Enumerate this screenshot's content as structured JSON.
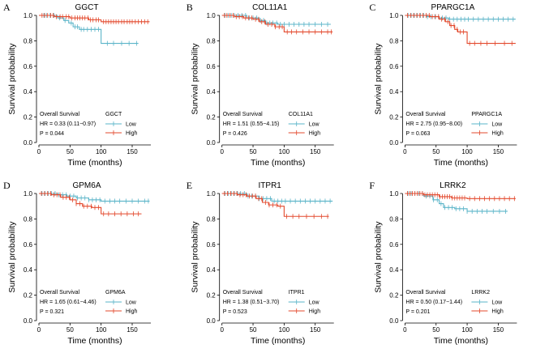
{
  "colors": {
    "low": "#5ab4c8",
    "high": "#e3492d"
  },
  "chart_data": [
    {
      "type": "line",
      "panel_label": "A",
      "title": "GGCT",
      "xlabel": "Time (months)",
      "ylabel": "Survival probability",
      "xlim": [
        0,
        180
      ],
      "ylim": [
        0,
        1
      ],
      "x_ticks": [
        "0",
        "50",
        "100",
        "150"
      ],
      "y_ticks": [
        "0.0",
        "0.2",
        "0.4",
        "0.6",
        "0.8",
        "1.0"
      ],
      "stats": {
        "label": "Overall Survival",
        "hr": "HR = 0.33 (0.11−0.97)",
        "p": "P = 0.044"
      },
      "legend": {
        "title": "GGCT",
        "entries": [
          "Low",
          "High"
        ]
      },
      "series": [
        {
          "name": "Low",
          "steps": [
            [
              0,
              1.0
            ],
            [
              30,
              0.98
            ],
            [
              40,
              0.96
            ],
            [
              48,
              0.94
            ],
            [
              55,
              0.91
            ],
            [
              65,
              0.89
            ],
            [
              100,
              0.78
            ],
            [
              150,
              0.78
            ]
          ],
          "end": 160,
          "censor": [
            8,
            12,
            18,
            24,
            33,
            42,
            52,
            58,
            62,
            68,
            72,
            78,
            84,
            90,
            96,
            110,
            120,
            133,
            145,
            157
          ]
        },
        {
          "name": "High",
          "steps": [
            [
              0,
              1.0
            ],
            [
              25,
              0.99
            ],
            [
              50,
              0.98
            ],
            [
              80,
              0.965
            ],
            [
              100,
              0.95
            ]
          ],
          "end": 178,
          "censor": [
            5,
            9,
            14,
            19,
            23,
            28,
            34,
            38,
            44,
            48,
            53,
            58,
            62,
            66,
            70,
            74,
            79,
            83,
            87,
            92,
            96,
            104,
            108,
            112,
            116,
            120,
            124,
            128,
            133,
            137,
            142,
            146,
            150,
            155,
            160,
            165,
            170,
            175
          ]
        }
      ]
    },
    {
      "type": "line",
      "panel_label": "B",
      "title": "COL11A1",
      "xlabel": "Time (months)",
      "ylabel": "Survival probability",
      "xlim": [
        0,
        180
      ],
      "ylim": [
        0,
        1
      ],
      "x_ticks": [
        "0",
        "50",
        "100",
        "150"
      ],
      "y_ticks": [
        "0.0",
        "0.2",
        "0.4",
        "0.6",
        "0.8",
        "1.0"
      ],
      "stats": {
        "label": "Overall Survival",
        "hr": "HR = 1.51 (0.55−4.15)",
        "p": "P = 0.426"
      },
      "legend": {
        "title": "COL11A1",
        "entries": [
          "Low",
          "High"
        ]
      },
      "series": [
        {
          "name": "Low",
          "steps": [
            [
              0,
              1.0
            ],
            [
              40,
              0.98
            ],
            [
              60,
              0.96
            ],
            [
              70,
              0.94
            ],
            [
              90,
              0.93
            ]
          ],
          "end": 175,
          "censor": [
            5,
            10,
            15,
            20,
            26,
            32,
            38,
            44,
            50,
            56,
            62,
            67,
            72,
            77,
            82,
            88,
            94,
            100,
            108,
            116,
            124,
            132,
            140,
            150,
            160,
            170
          ]
        },
        {
          "name": "High",
          "steps": [
            [
              0,
              1.0
            ],
            [
              20,
              0.99
            ],
            [
              35,
              0.98
            ],
            [
              50,
              0.97
            ],
            [
              60,
              0.95
            ],
            [
              70,
              0.93
            ],
            [
              85,
              0.91
            ],
            [
              100,
              0.87
            ]
          ],
          "end": 178,
          "censor": [
            4,
            8,
            13,
            18,
            23,
            28,
            33,
            38,
            43,
            48,
            54,
            59,
            64,
            69,
            74,
            80,
            86,
            92,
            97,
            105,
            112,
            120,
            130,
            140,
            150,
            160,
            170,
            176
          ]
        }
      ]
    },
    {
      "type": "line",
      "panel_label": "C",
      "title": "PPARGC1A",
      "xlabel": "Time (months)",
      "ylabel": "Survival probability",
      "xlim": [
        0,
        180
      ],
      "ylim": [
        0,
        1
      ],
      "x_ticks": [
        "0",
        "50",
        "100",
        "150"
      ],
      "y_ticks": [
        "0.0",
        "0.2",
        "0.4",
        "0.6",
        "0.8",
        "1.0"
      ],
      "stats": {
        "label": "Overall Survival",
        "hr": "HR = 2.75 (0.95−8.00)",
        "p": "P = 0.063"
      },
      "legend": {
        "title": "PPARGC1A",
        "entries": [
          "Low",
          "High"
        ]
      },
      "series": [
        {
          "name": "Low",
          "steps": [
            [
              0,
              1.0
            ],
            [
              35,
              0.99
            ],
            [
              55,
              0.98
            ],
            [
              70,
              0.97
            ]
          ],
          "end": 178,
          "censor": [
            5,
            10,
            15,
            20,
            25,
            30,
            36,
            42,
            48,
            54,
            60,
            66,
            72,
            78,
            84,
            90,
            96,
            102,
            110,
            118,
            126,
            134,
            142,
            150,
            158,
            166,
            174
          ]
        },
        {
          "name": "High",
          "steps": [
            [
              0,
              1.0
            ],
            [
              40,
              0.99
            ],
            [
              55,
              0.97
            ],
            [
              65,
              0.95
            ],
            [
              72,
              0.92
            ],
            [
              80,
              0.89
            ],
            [
              85,
              0.87
            ],
            [
              100,
              0.78
            ]
          ],
          "end": 178,
          "censor": [
            4,
            9,
            14,
            19,
            24,
            29,
            34,
            39,
            44,
            49,
            54,
            59,
            64,
            69,
            74,
            79,
            84,
            89,
            94,
            104,
            112,
            122,
            132,
            145,
            160,
            172
          ]
        }
      ]
    },
    {
      "type": "line",
      "panel_label": "D",
      "title": "GPM6A",
      "xlabel": "Time (months)",
      "ylabel": "Survival probability",
      "xlim": [
        0,
        180
      ],
      "ylim": [
        0,
        1
      ],
      "x_ticks": [
        "0",
        "50",
        "100",
        "150"
      ],
      "y_ticks": [
        "0.0",
        "0.2",
        "0.4",
        "0.6",
        "0.8",
        "1.0"
      ],
      "stats": {
        "label": "Overall Survival",
        "hr": "HR = 1.65 (0.61−4.46)",
        "p": "P = 0.321"
      },
      "legend": {
        "title": "GPM6A",
        "entries": [
          "Low",
          "High"
        ]
      },
      "series": [
        {
          "name": "Low",
          "steps": [
            [
              0,
              1.0
            ],
            [
              30,
              0.99
            ],
            [
              45,
              0.98
            ],
            [
              60,
              0.965
            ],
            [
              80,
              0.95
            ],
            [
              100,
              0.94
            ]
          ],
          "end": 178,
          "censor": [
            5,
            10,
            15,
            20,
            26,
            32,
            38,
            44,
            50,
            56,
            62,
            68,
            74,
            80,
            86,
            92,
            98,
            106,
            114,
            122,
            130,
            140,
            150,
            160,
            170,
            176
          ]
        },
        {
          "name": "High",
          "steps": [
            [
              0,
              1.0
            ],
            [
              20,
              0.99
            ],
            [
              35,
              0.97
            ],
            [
              50,
              0.95
            ],
            [
              60,
              0.92
            ],
            [
              70,
              0.9
            ],
            [
              85,
              0.89
            ],
            [
              100,
              0.84
            ]
          ],
          "end": 165,
          "censor": [
            4,
            9,
            14,
            19,
            24,
            29,
            34,
            39,
            44,
            49,
            54,
            60,
            66,
            72,
            78,
            84,
            90,
            96,
            104,
            112,
            122,
            132,
            142,
            152,
            160
          ]
        }
      ]
    },
    {
      "type": "line",
      "panel_label": "E",
      "title": "ITPR1",
      "xlabel": "Time (months)",
      "ylabel": "Survival probability",
      "xlim": [
        0,
        180
      ],
      "ylim": [
        0,
        1
      ],
      "x_ticks": [
        "0",
        "50",
        "100",
        "150"
      ],
      "y_ticks": [
        "0.0",
        "0.2",
        "0.4",
        "0.6",
        "0.8",
        "1.0"
      ],
      "stats": {
        "label": "Overall Survival",
        "hr": "HR = 1.38 (0.51−3.70)",
        "p": "P = 0.523"
      },
      "legend": {
        "title": "ITPR1",
        "entries": [
          "Low",
          "High"
        ]
      },
      "series": [
        {
          "name": "Low",
          "steps": [
            [
              0,
              1.0
            ],
            [
              40,
              0.98
            ],
            [
              60,
              0.96
            ],
            [
              80,
              0.94
            ]
          ],
          "end": 178,
          "censor": [
            5,
            10,
            15,
            20,
            25,
            30,
            36,
            42,
            48,
            54,
            60,
            66,
            72,
            78,
            84,
            90,
            96,
            102,
            110,
            118,
            126,
            134,
            142,
            150,
            158,
            166,
            174
          ]
        },
        {
          "name": "High",
          "steps": [
            [
              0,
              1.0
            ],
            [
              25,
              0.99
            ],
            [
              40,
              0.98
            ],
            [
              55,
              0.96
            ],
            [
              65,
              0.93
            ],
            [
              75,
              0.91
            ],
            [
              90,
              0.9
            ],
            [
              100,
              0.82
            ]
          ],
          "end": 172,
          "censor": [
            4,
            9,
            14,
            19,
            24,
            29,
            34,
            39,
            44,
            49,
            54,
            59,
            64,
            70,
            76,
            82,
            88,
            94,
            104,
            114,
            124,
            136,
            148,
            160,
            170
          ]
        }
      ]
    },
    {
      "type": "line",
      "panel_label": "F",
      "title": "LRRK2",
      "xlabel": "Time (months)",
      "ylabel": "Survival probability",
      "xlim": [
        0,
        180
      ],
      "ylim": [
        0,
        1
      ],
      "x_ticks": [
        "0",
        "50",
        "100",
        "150"
      ],
      "y_ticks": [
        "0.0",
        "0.2",
        "0.4",
        "0.6",
        "0.8",
        "1.0"
      ],
      "stats": {
        "label": "Overall Survival",
        "hr": "HR = 0.50 (0.17−1.44)",
        "p": "P = 0.201"
      },
      "legend": {
        "title": "LRRK2",
        "entries": [
          "Low",
          "High"
        ]
      },
      "series": [
        {
          "name": "Low",
          "steps": [
            [
              0,
              1.0
            ],
            [
              30,
              0.98
            ],
            [
              45,
              0.95
            ],
            [
              55,
              0.92
            ],
            [
              62,
              0.89
            ],
            [
              80,
              0.88
            ],
            [
              100,
              0.86
            ]
          ],
          "end": 165,
          "censor": [
            5,
            10,
            16,
            22,
            28,
            34,
            40,
            46,
            52,
            58,
            64,
            70,
            76,
            82,
            88,
            94,
            100,
            108,
            116,
            124,
            132,
            142,
            152,
            162
          ]
        },
        {
          "name": "High",
          "steps": [
            [
              0,
              1.0
            ],
            [
              30,
              0.99
            ],
            [
              55,
              0.975
            ],
            [
              75,
              0.965
            ],
            [
              100,
              0.96
            ]
          ],
          "end": 178,
          "censor": [
            4,
            8,
            12,
            16,
            20,
            24,
            28,
            32,
            36,
            40,
            44,
            48,
            52,
            56,
            60,
            64,
            68,
            72,
            76,
            80,
            84,
            88,
            92,
            96,
            104,
            112,
            120,
            128,
            136,
            144,
            152,
            160,
            168,
            176
          ]
        }
      ]
    }
  ]
}
